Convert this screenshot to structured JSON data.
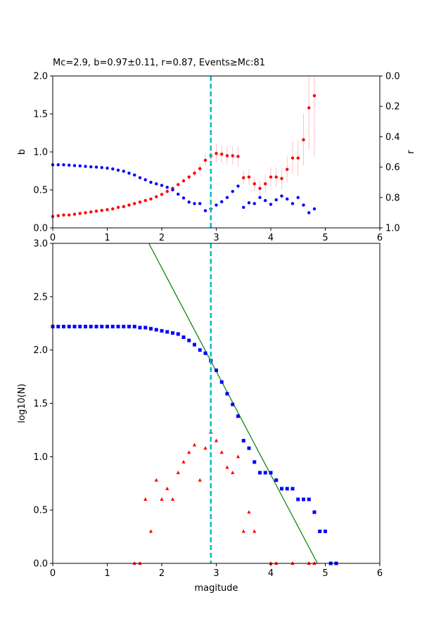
{
  "title": "Mc=2.9, b=0.97±0.11, r=0.87, Events≥Mc:81",
  "colors": {
    "b_series": "#ff0000",
    "b_errorbar": "#ffc0cb",
    "r_series": "#0000ff",
    "mc_line": "#00bfbf",
    "cum_series": "#0000ff",
    "noncum_series": "#ff0000",
    "fit_line": "#008000"
  },
  "chart_data": [
    {
      "type": "scatter",
      "xlim": [
        0,
        6
      ],
      "ylim": [
        0,
        2
      ],
      "ylabel": "b",
      "y2lim": [
        0,
        1
      ],
      "y2_inverted": true,
      "y2label": "r",
      "x_ticks": [
        "0",
        "1",
        "2",
        "3",
        "4",
        "5",
        "6"
      ],
      "y_ticks": [
        "0.0",
        "0.5",
        "1.0",
        "1.5",
        "2.0"
      ],
      "y2_ticks": [
        "0.0",
        "0.2",
        "0.4",
        "0.6",
        "0.8",
        "1.0"
      ],
      "mc_line_x": 2.9,
      "series": [
        {
          "axis": "left",
          "x": [
            0.0,
            0.1,
            0.2,
            0.3,
            0.4,
            0.5,
            0.6,
            0.7,
            0.8,
            0.9,
            1.0,
            1.1,
            1.2,
            1.3,
            1.4,
            1.5,
            1.6,
            1.7,
            1.8,
            1.9,
            2.0,
            2.1,
            2.2,
            2.3,
            2.4,
            2.5,
            2.6,
            2.7,
            2.8,
            2.9,
            3.0,
            3.1,
            3.2,
            3.3,
            3.4,
            3.5,
            3.6,
            3.7,
            3.8,
            3.9,
            4.0,
            4.1,
            4.2,
            4.3,
            4.4,
            4.5,
            4.6,
            4.7,
            4.8
          ],
          "y": [
            0.15,
            0.16,
            0.17,
            0.17,
            0.18,
            0.19,
            0.2,
            0.21,
            0.22,
            0.23,
            0.24,
            0.25,
            0.27,
            0.28,
            0.3,
            0.32,
            0.34,
            0.36,
            0.38,
            0.41,
            0.44,
            0.48,
            0.52,
            0.57,
            0.62,
            0.67,
            0.72,
            0.78,
            0.89,
            0.95,
            0.98,
            0.97,
            0.95,
            0.95,
            0.94,
            0.66,
            0.67,
            0.58,
            0.52,
            0.58,
            0.67,
            0.67,
            0.65,
            0.77,
            0.92,
            0.92,
            1.16,
            1.58,
            1.74
          ],
          "err": [
            0.01,
            0.01,
            0.01,
            0.01,
            0.01,
            0.01,
            0.01,
            0.01,
            0.01,
            0.01,
            0.01,
            0.01,
            0.01,
            0.01,
            0.01,
            0.01,
            0.01,
            0.01,
            0.01,
            0.01,
            0.02,
            0.02,
            0.02,
            0.02,
            0.03,
            0.04,
            0.05,
            0.07,
            0.09,
            0.11,
            0.12,
            0.12,
            0.12,
            0.12,
            0.13,
            0.09,
            0.11,
            0.1,
            0.1,
            0.12,
            0.13,
            0.13,
            0.14,
            0.17,
            0.22,
            0.24,
            0.34,
            0.55,
            0.8
          ]
        },
        {
          "axis": "right",
          "x": [
            0.0,
            0.1,
            0.2,
            0.3,
            0.4,
            0.5,
            0.6,
            0.7,
            0.8,
            0.9,
            1.0,
            1.1,
            1.2,
            1.3,
            1.4,
            1.5,
            1.6,
            1.7,
            1.8,
            1.9,
            2.0,
            2.1,
            2.2,
            2.3,
            2.4,
            2.5,
            2.6,
            2.7,
            2.8,
            2.9,
            3.0,
            3.1,
            3.2,
            3.3,
            3.4,
            3.5,
            3.6,
            3.7,
            3.8,
            3.9,
            4.0,
            4.1,
            4.2,
            4.3,
            4.4,
            4.5,
            4.6,
            4.7,
            4.8
          ],
          "y": [
            0.585,
            0.585,
            0.585,
            0.587,
            0.59,
            0.592,
            0.595,
            0.598,
            0.6,
            0.603,
            0.607,
            0.612,
            0.62,
            0.627,
            0.64,
            0.652,
            0.67,
            0.683,
            0.7,
            0.71,
            0.72,
            0.733,
            0.75,
            0.778,
            0.803,
            0.83,
            0.84,
            0.84,
            0.887,
            0.875,
            0.85,
            0.828,
            0.8,
            0.76,
            0.725,
            0.865,
            0.835,
            0.84,
            0.8,
            0.82,
            0.845,
            0.815,
            0.79,
            0.81,
            0.84,
            0.8,
            0.85,
            0.9,
            0.875
          ]
        }
      ]
    },
    {
      "type": "scatter",
      "xlim": [
        0,
        6
      ],
      "ylim": [
        0,
        3
      ],
      "xlabel": "magitude",
      "ylabel": "log10(N)",
      "x_ticks": [
        "0",
        "1",
        "2",
        "3",
        "4",
        "5",
        "6"
      ],
      "y_ticks": [
        "0.0",
        "0.5",
        "1.0",
        "1.5",
        "2.0",
        "2.5",
        "3.0"
      ],
      "mc_line_x": 2.9,
      "fit_line": {
        "a": 4.71,
        "b": 0.97
      },
      "series": [
        {
          "marker": "square",
          "x": [
            0.0,
            0.1,
            0.2,
            0.3,
            0.4,
            0.5,
            0.6,
            0.7,
            0.8,
            0.9,
            1.0,
            1.1,
            1.2,
            1.3,
            1.4,
            1.5,
            1.6,
            1.7,
            1.8,
            1.9,
            2.0,
            2.1,
            2.2,
            2.3,
            2.4,
            2.5,
            2.6,
            2.7,
            2.8,
            2.9,
            3.0,
            3.1,
            3.2,
            3.3,
            3.4,
            3.5,
            3.6,
            3.7,
            3.8,
            3.9,
            4.0,
            4.1,
            4.2,
            4.3,
            4.4,
            4.5,
            4.6,
            4.7,
            4.8,
            4.9,
            5.0,
            5.1,
            5.2
          ],
          "y": [
            2.22,
            2.22,
            2.22,
            2.22,
            2.22,
            2.22,
            2.22,
            2.22,
            2.22,
            2.22,
            2.22,
            2.22,
            2.22,
            2.22,
            2.22,
            2.22,
            2.21,
            2.21,
            2.2,
            2.19,
            2.18,
            2.17,
            2.16,
            2.15,
            2.12,
            2.09,
            2.05,
            2.0,
            1.97,
            1.9,
            1.81,
            1.7,
            1.59,
            1.49,
            1.38,
            1.15,
            1.08,
            0.95,
            0.85,
            0.85,
            0.85,
            0.78,
            0.7,
            0.7,
            0.7,
            0.6,
            0.6,
            0.6,
            0.48,
            0.3,
            0.3,
            0.0,
            0.0
          ]
        },
        {
          "marker": "triangle",
          "x": [
            1.5,
            1.6,
            1.7,
            1.8,
            1.9,
            2.0,
            2.1,
            2.2,
            2.3,
            2.4,
            2.5,
            2.6,
            2.7,
            2.8,
            2.9,
            3.0,
            3.1,
            3.2,
            3.3,
            3.4,
            3.5,
            3.6,
            3.7,
            4.0,
            4.1,
            4.4,
            4.7,
            4.8
          ],
          "y": [
            0.0,
            0.0,
            0.6,
            0.3,
            0.78,
            0.6,
            0.7,
            0.6,
            0.85,
            0.95,
            1.04,
            1.11,
            0.78,
            1.08,
            1.23,
            1.15,
            1.04,
            0.9,
            0.85,
            1.0,
            0.3,
            0.48,
            0.3,
            0.0,
            0.0,
            0.0,
            0.0,
            0.0
          ]
        }
      ]
    }
  ]
}
